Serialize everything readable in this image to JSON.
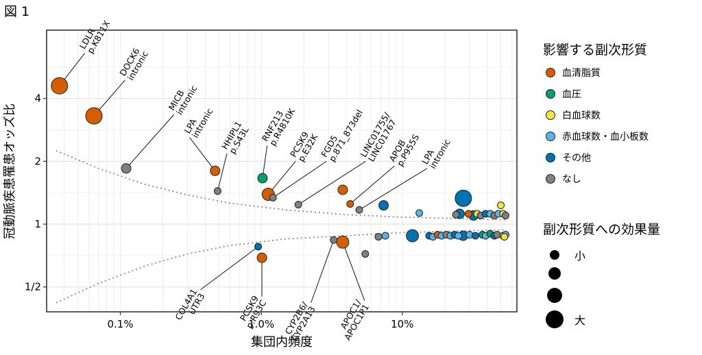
{
  "figure_label": "図 1",
  "legend": {
    "color_title": "影響する副次形質",
    "items": [
      {
        "label": "血清脂質",
        "color": "#D55E00"
      },
      {
        "label": "血圧",
        "color": "#009E73"
      },
      {
        "label": "白血球数",
        "color": "#F0E442"
      },
      {
        "label": "赤血球数・血小板数",
        "color": "#56B4E9"
      },
      {
        "label": "その他",
        "color": "#0072B2"
      },
      {
        "label": "なし",
        "color": "#808080"
      }
    ],
    "size_title": "副次形質への効果量",
    "size_labels": [
      "小",
      "",
      "",
      "大"
    ]
  },
  "chart_data": {
    "type": "scatter",
    "xlabel": "集団内頻度",
    "ylabel": "冠動脈疾患罹患オッズ比",
    "x_scale": "log",
    "y_scale": "log2",
    "xlim": [
      0.0003,
      0.65
    ],
    "ylim": [
      0.38,
      8.5
    ],
    "x_ticks": [
      {
        "value": 0.001,
        "label": "0.1%"
      },
      {
        "value": 0.01,
        "label": "1.0%"
      },
      {
        "value": 0.1,
        "label": "10%"
      }
    ],
    "y_ticks": [
      {
        "value": 0.5,
        "label": "1/2"
      },
      {
        "value": 1,
        "label": "1"
      },
      {
        "value": 2,
        "label": "2"
      },
      {
        "value": 4,
        "label": "4"
      }
    ],
    "grid": true,
    "curve_upper": [
      [
        0.00035,
        2.25
      ],
      [
        0.0007,
        1.85
      ],
      [
        0.0015,
        1.55
      ],
      [
        0.003,
        1.38
      ],
      [
        0.006,
        1.26
      ],
      [
        0.015,
        1.17
      ],
      [
        0.04,
        1.11
      ],
      [
        0.1,
        1.08
      ],
      [
        0.3,
        1.06
      ],
      [
        0.55,
        1.05
      ]
    ],
    "curve_lower": [
      [
        0.00035,
        0.42
      ],
      [
        0.0007,
        0.52
      ],
      [
        0.0015,
        0.63
      ],
      [
        0.003,
        0.72
      ],
      [
        0.006,
        0.79
      ],
      [
        0.015,
        0.85
      ],
      [
        0.04,
        0.88
      ],
      [
        0.1,
        0.91
      ],
      [
        0.3,
        0.93
      ],
      [
        0.55,
        0.94
      ]
    ],
    "points": [
      {
        "x": 0.00037,
        "y": 4.6,
        "cat": 0,
        "size": 4
      },
      {
        "x": 0.00065,
        "y": 3.3,
        "cat": 0,
        "size": 4
      },
      {
        "x": 0.0011,
        "y": 1.85,
        "cat": 5,
        "size": 2
      },
      {
        "x": 0.0047,
        "y": 1.8,
        "cat": 0,
        "size": 2
      },
      {
        "x": 0.0049,
        "y": 1.44,
        "cat": 5,
        "size": 1
      },
      {
        "x": 0.0102,
        "y": 1.66,
        "cat": 1,
        "size": 2
      },
      {
        "x": 0.0112,
        "y": 1.39,
        "cat": 0,
        "size": 3
      },
      {
        "x": 0.0121,
        "y": 1.34,
        "cat": 5,
        "size": 1
      },
      {
        "x": 0.0183,
        "y": 1.24,
        "cat": 5,
        "size": 1
      },
      {
        "x": 0.0378,
        "y": 1.46,
        "cat": 0,
        "size": 2
      },
      {
        "x": 0.0427,
        "y": 1.25,
        "cat": 0,
        "size": 1
      },
      {
        "x": 0.0495,
        "y": 1.17,
        "cat": 5,
        "size": 1
      },
      {
        "x": 0.0737,
        "y": 1.23,
        "cat": 4,
        "size": 2
      },
      {
        "x": 0.132,
        "y": 1.13,
        "cat": 3,
        "size": 1
      },
      {
        "x": 0.271,
        "y": 1.33,
        "cat": 4,
        "size": 4
      },
      {
        "x": 0.255,
        "y": 1.12,
        "cat": 4,
        "size": 2
      },
      {
        "x": 0.295,
        "y": 1.12,
        "cat": 0,
        "size": 1
      },
      {
        "x": 0.32,
        "y": 1.1,
        "cat": 4,
        "size": 2
      },
      {
        "x": 0.34,
        "y": 1.12,
        "cat": 2,
        "size": 1
      },
      {
        "x": 0.36,
        "y": 1.1,
        "cat": 5,
        "size": 1
      },
      {
        "x": 0.39,
        "y": 1.12,
        "cat": 4,
        "size": 1
      },
      {
        "x": 0.42,
        "y": 1.12,
        "cat": 3,
        "size": 1
      },
      {
        "x": 0.45,
        "y": 1.1,
        "cat": 5,
        "size": 1
      },
      {
        "x": 0.48,
        "y": 1.12,
        "cat": 3,
        "size": 1
      },
      {
        "x": 0.5,
        "y": 1.23,
        "cat": 2,
        "size": 1
      },
      {
        "x": 0.52,
        "y": 1.12,
        "cat": 2,
        "size": 1
      },
      {
        "x": 0.54,
        "y": 1.1,
        "cat": 5,
        "size": 1
      },
      {
        "x": 0.24,
        "y": 1.11,
        "cat": 5,
        "size": 1
      },
      {
        "x": 0.0095,
        "y": 0.78,
        "cat": 4,
        "size": 1
      },
      {
        "x": 0.0101,
        "y": 0.69,
        "cat": 0,
        "size": 2
      },
      {
        "x": 0.0326,
        "y": 0.84,
        "cat": 5,
        "size": 1
      },
      {
        "x": 0.0378,
        "y": 0.82,
        "cat": 0,
        "size": 3
      },
      {
        "x": 0.0546,
        "y": 0.72,
        "cat": 5,
        "size": 1
      },
      {
        "x": 0.0678,
        "y": 0.87,
        "cat": 5,
        "size": 1
      },
      {
        "x": 0.0758,
        "y": 0.88,
        "cat": 3,
        "size": 1
      },
      {
        "x": 0.118,
        "y": 0.88,
        "cat": 4,
        "size": 3
      },
      {
        "x": 0.155,
        "y": 0.88,
        "cat": 4,
        "size": 1
      },
      {
        "x": 0.165,
        "y": 0.87,
        "cat": 3,
        "size": 1
      },
      {
        "x": 0.178,
        "y": 0.89,
        "cat": 0,
        "size": 1
      },
      {
        "x": 0.19,
        "y": 0.88,
        "cat": 3,
        "size": 1
      },
      {
        "x": 0.205,
        "y": 0.89,
        "cat": 5,
        "size": 1
      },
      {
        "x": 0.22,
        "y": 0.88,
        "cat": 3,
        "size": 1
      },
      {
        "x": 0.235,
        "y": 0.89,
        "cat": 4,
        "size": 1
      },
      {
        "x": 0.25,
        "y": 0.88,
        "cat": 3,
        "size": 1
      },
      {
        "x": 0.27,
        "y": 0.88,
        "cat": 4,
        "size": 2
      },
      {
        "x": 0.3,
        "y": 0.89,
        "cat": 3,
        "size": 1
      },
      {
        "x": 0.33,
        "y": 0.88,
        "cat": 4,
        "size": 1
      },
      {
        "x": 0.37,
        "y": 0.89,
        "cat": 1,
        "size": 1
      },
      {
        "x": 0.39,
        "y": 0.88,
        "cat": 3,
        "size": 1
      },
      {
        "x": 0.42,
        "y": 0.9,
        "cat": 1,
        "size": 1
      },
      {
        "x": 0.45,
        "y": 0.88,
        "cat": 4,
        "size": 1
      },
      {
        "x": 0.47,
        "y": 0.89,
        "cat": 5,
        "size": 1
      },
      {
        "x": 0.52,
        "y": 0.88,
        "cat": 2,
        "size": 1
      },
      {
        "x": 0.54,
        "y": 0.89,
        "cat": 3,
        "size": 1
      },
      {
        "x": 0.53,
        "y": 0.87,
        "cat": 2,
        "size": 1
      }
    ],
    "annotations": [
      {
        "line1": "LDLR",
        "line2": "p.K811X",
        "px": 0.00037,
        "py": 4.6,
        "tx": 0.00056,
        "ty": 6.6
      },
      {
        "line1": "DOCK6",
        "line2": "intronic",
        "px": 0.00065,
        "py": 3.3,
        "tx": 0.00108,
        "ty": 4.9
      },
      {
        "line1": "MICB",
        "line2": "intronic",
        "px": 0.0011,
        "py": 1.85,
        "tx": 0.0024,
        "ty": 3.35
      },
      {
        "line1": "LPA",
        "line2": "intronic",
        "px": 0.0047,
        "py": 1.8,
        "tx": 0.0031,
        "ty": 2.6
      },
      {
        "line1": "HHIPL1",
        "line2": "p.S43L",
        "px": 0.0049,
        "py": 1.44,
        "tx": 0.0057,
        "ty": 2.18
      },
      {
        "line1": "RNF213",
        "line2": "p.R4810K",
        "px": 0.0102,
        "py": 1.66,
        "tx": 0.011,
        "ty": 2.38
      },
      {
        "line1": "PCSK9",
        "line2": "p.E32K",
        "px": 0.0112,
        "py": 1.39,
        "tx": 0.0175,
        "ty": 2.0
      },
      {
        "line1": "FGD5",
        "line2": "p.871_873del",
        "px": 0.0121,
        "py": 1.34,
        "tx": 0.029,
        "ty": 2.0
      },
      {
        "line1": "LINC01755/",
        "line2": "LINC01767",
        "px": 0.0183,
        "py": 1.24,
        "tx": 0.055,
        "ty": 2.0
      },
      {
        "line1": "APOB",
        "line2": "p.P955S",
        "px": 0.0427,
        "py": 1.25,
        "tx": 0.088,
        "ty": 1.9
      },
      {
        "line1": "LPA",
        "line2": "intronic",
        "px": 0.0495,
        "py": 1.17,
        "tx": 0.15,
        "ty": 1.85
      },
      {
        "line1": "COL4A1",
        "line2": "UTR3",
        "px": 0.0095,
        "py": 0.78,
        "tx": 0.0037,
        "ty": 0.485
      },
      {
        "line1": "PCSK9",
        "line2": "p.R93C",
        "px": 0.0101,
        "py": 0.69,
        "tx": 0.0101,
        "ty": 0.45
      },
      {
        "line1": "CYP2B6/",
        "line2": "CYP2A13",
        "px": 0.0326,
        "py": 0.84,
        "tx": 0.0225,
        "ty": 0.42
      },
      {
        "line1": "APOC1/",
        "line2": "APOC1P1",
        "px": 0.0378,
        "py": 0.82,
        "tx": 0.054,
        "ty": 0.43
      }
    ]
  }
}
